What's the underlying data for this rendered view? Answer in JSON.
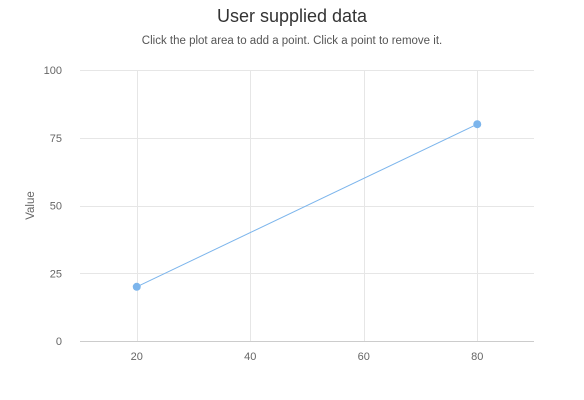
{
  "chart_data": {
    "type": "line",
    "title": "User supplied data",
    "subtitle": "Click the plot area to add a point. Click a point to remove it.",
    "xlabel": "",
    "ylabel": "Value",
    "xlim": [
      10,
      90
    ],
    "ylim": [
      0,
      100
    ],
    "x_ticks": [
      20,
      40,
      60,
      80
    ],
    "y_ticks": [
      0,
      25,
      50,
      75,
      100
    ],
    "grid": true,
    "legend": "none",
    "series": [
      {
        "color": "#7cb5ec",
        "points": [
          {
            "x": 20,
            "y": 20
          },
          {
            "x": 80,
            "y": 80
          }
        ]
      }
    ]
  }
}
